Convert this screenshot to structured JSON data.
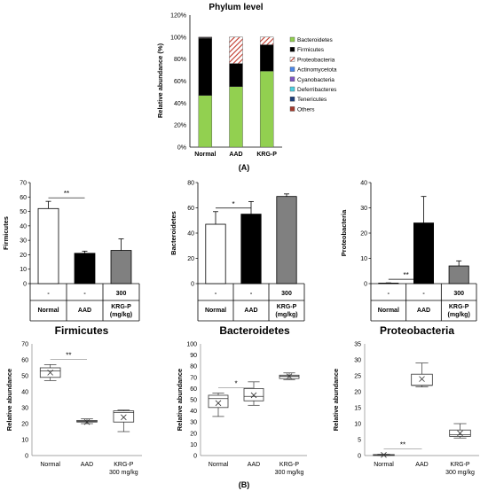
{
  "captions": {
    "a": "(A)",
    "b": "(B)"
  },
  "colors": {
    "normal": "#ffffff",
    "aad": "#000000",
    "krgp": "#808080",
    "hatch": "#c0392b"
  },
  "chart_data": [
    {
      "id": "phylum",
      "type": "bar",
      "stacked": true,
      "title": "Phylum level",
      "ylabel": "Relative abundance (%)",
      "ylim": [
        0,
        120
      ],
      "yticks": [
        "0%",
        "20%",
        "40%",
        "60%",
        "80%",
        "100%",
        "120%"
      ],
      "categories": [
        "Normal",
        "AAD",
        "KRG-P"
      ],
      "legend_position": "right",
      "series": [
        {
          "name": "Bacteroidetes",
          "color": "#92d050",
          "values": [
            47,
            55,
            69
          ]
        },
        {
          "name": "Firmicutes",
          "color": "#000000",
          "values": [
            52,
            21,
            24
          ]
        },
        {
          "name": "Proteobacteria",
          "color": "hatch-red",
          "values": [
            0.3,
            24,
            7
          ]
        },
        {
          "name": "Actinomycetota",
          "color": "#4a86e8",
          "values": [
            0.4,
            0,
            0
          ]
        },
        {
          "name": "Cyanobacteria",
          "color": "#7e57c2",
          "values": [
            0,
            0,
            0
          ]
        },
        {
          "name": "Deferribacteres",
          "color": "#4dd0e1",
          "values": [
            0,
            0,
            0
          ]
        },
        {
          "name": "Tenericutes",
          "color": "#1f3f7a",
          "values": [
            0,
            0,
            0
          ]
        },
        {
          "name": "Others",
          "color": "#a33b2d",
          "values": [
            0.3,
            0,
            0
          ]
        }
      ]
    },
    {
      "id": "firm-bar",
      "type": "bar",
      "ylabel": "Firmicutes",
      "ylim": [
        0,
        70
      ],
      "yticks": [
        "0",
        "10",
        "20",
        "30",
        "40",
        "50",
        "60",
        "70"
      ],
      "table": {
        "rows": [
          [
            "-",
            "-",
            "300"
          ],
          [
            "Normal",
            "AAD",
            "KRG-P (mg/kg)"
          ]
        ]
      },
      "values": [
        52,
        21,
        23
      ],
      "errors": [
        5,
        1.5,
        8
      ],
      "sig": "**"
    },
    {
      "id": "bact-bar",
      "type": "bar",
      "ylabel": "Bacteroidetes",
      "ylim": [
        0,
        80
      ],
      "yticks": [
        "0",
        "20",
        "40",
        "60",
        "80"
      ],
      "table": {
        "rows": [
          [
            "-",
            "-",
            "300"
          ],
          [
            "Normal",
            "AAD",
            "KRG-P (mg/kg)"
          ]
        ]
      },
      "values": [
        47,
        55,
        69
      ],
      "errors": [
        10,
        10,
        2
      ],
      "sig": "*"
    },
    {
      "id": "prot-bar",
      "type": "bar",
      "ylabel": "Proteobacteria",
      "ylim": [
        0,
        40
      ],
      "yticks": [
        "0",
        "10",
        "20",
        "30",
        "40"
      ],
      "table": {
        "rows": [
          [
            "-",
            "-",
            "300"
          ],
          [
            "Normal",
            "AAD",
            "KRG-P (mg/kg)"
          ]
        ]
      },
      "values": [
        0.2,
        24,
        7
      ],
      "errors": [
        0.1,
        10.5,
        2
      ],
      "sig": "**"
    },
    {
      "id": "firm-box",
      "type": "box",
      "title": "Firmicutes",
      "ylabel": "Relative abundance",
      "ylim": [
        0,
        70
      ],
      "yticks": [
        "0",
        "10",
        "20",
        "30",
        "40",
        "50",
        "60",
        "70"
      ],
      "categories": [
        "Normal",
        "AAD",
        "KRG-P 300 mg/kg"
      ],
      "boxes": [
        {
          "min": 47,
          "q1": 49,
          "median": 53,
          "q3": 55,
          "max": 57,
          "mean": 52
        },
        {
          "min": 20,
          "q1": 21,
          "median": 21.5,
          "q3": 22,
          "max": 23,
          "mean": 21
        },
        {
          "min": 15,
          "q1": 21,
          "median": 27,
          "q3": 28,
          "max": 28.5,
          "mean": 24
        }
      ],
      "sig": "**"
    },
    {
      "id": "bact-box",
      "type": "box",
      "title": "Bacteroidetes",
      "ylabel": "Relative abundance",
      "ylim": [
        0,
        100
      ],
      "yticks": [
        "0",
        "10",
        "20",
        "30",
        "40",
        "50",
        "60",
        "70",
        "80",
        "90",
        "100"
      ],
      "categories": [
        "Normal",
        "AAD",
        "KRG-P 300 mg/kg"
      ],
      "boxes": [
        {
          "min": 35,
          "q1": 43,
          "median": 51,
          "q3": 54,
          "max": 56,
          "mean": 47
        },
        {
          "min": 45,
          "q1": 49,
          "median": 53,
          "q3": 60,
          "max": 66,
          "mean": 54
        },
        {
          "min": 68,
          "q1": 69,
          "median": 71,
          "q3": 72,
          "max": 74,
          "mean": 71
        }
      ],
      "sig": "*"
    },
    {
      "id": "prot-box",
      "type": "box",
      "title": "Proteobacteria",
      "ylabel": "Relative abundance",
      "ylim": [
        0,
        35
      ],
      "yticks": [
        "0",
        "5",
        "10",
        "15",
        "20",
        "25",
        "30",
        "35"
      ],
      "categories": [
        "Normal",
        "AAD",
        "KRG-P 300 mg/kg"
      ],
      "boxes": [
        {
          "min": 0,
          "q1": 0.1,
          "median": 0.2,
          "q3": 0.3,
          "max": 0.4,
          "mean": 0.2
        },
        {
          "min": 21.5,
          "q1": 22,
          "median": 22,
          "q3": 25.5,
          "max": 29,
          "mean": 24
        },
        {
          "min": 5.5,
          "q1": 6,
          "median": 6.5,
          "q3": 8,
          "max": 10,
          "mean": 7
        }
      ],
      "sig": "**"
    }
  ]
}
